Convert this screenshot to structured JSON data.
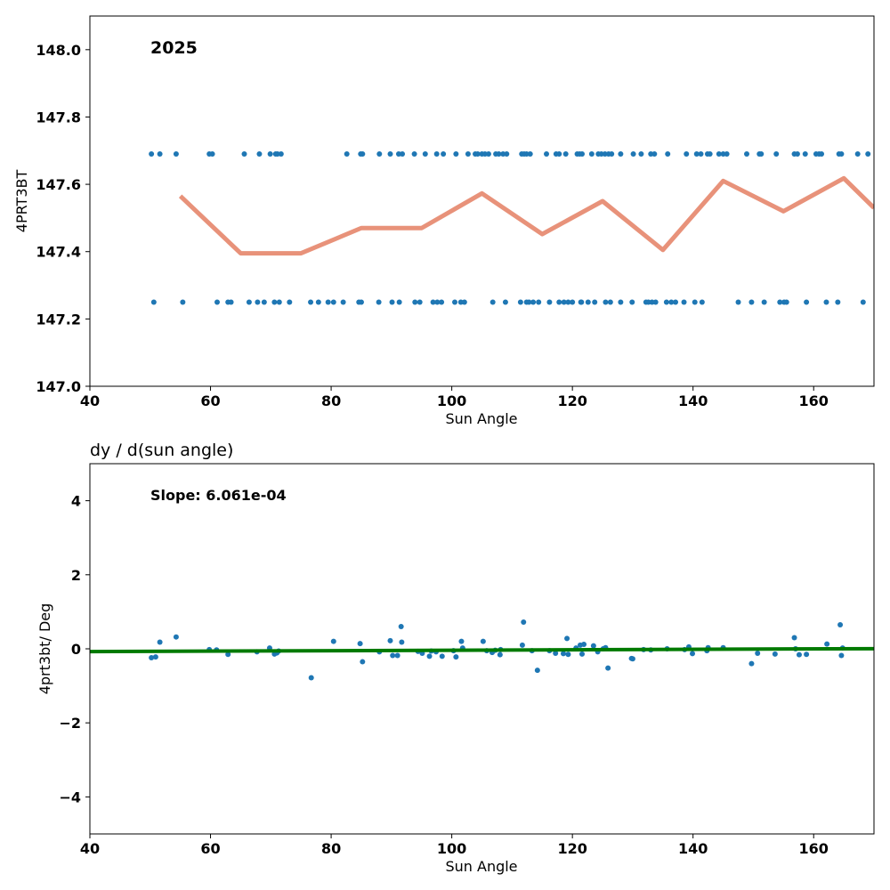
{
  "chart_data": [
    {
      "type": "scatter",
      "annotation": "2025",
      "xlabel": "Sun Angle",
      "ylabel": "4PRT3BT",
      "xlim": [
        40,
        170
      ],
      "ylim": [
        147.0,
        148.1
      ],
      "xticks": [
        40,
        60,
        80,
        100,
        120,
        140,
        160
      ],
      "yticks": [
        147.0,
        147.2,
        147.4,
        147.6,
        147.8,
        148.0
      ],
      "xtick_labels": [
        "40",
        "60",
        "80",
        "100",
        "120",
        "140",
        "160"
      ],
      "ytick_labels": [
        "147.0",
        "147.2",
        "147.4",
        "147.6",
        "147.8",
        "148.0"
      ],
      "point_color": "#1f77b4",
      "line_color": "#e8927a",
      "series": [
        {
          "values_high_y": 147.69,
          "x_high": [
            50.2,
            51.6,
            54.3,
            59.8,
            60.3,
            65.6,
            68.1,
            69.9,
            70.8,
            71.1,
            71.7,
            82.6,
            84.9,
            85.2,
            88.0,
            89.8,
            91.2,
            91.8,
            93.8,
            95.6,
            97.5,
            98.6,
            100.7,
            102.7,
            103.9,
            104.3,
            105.0,
            105.5,
            106.1,
            107.3,
            107.8,
            108.5,
            109.1,
            111.6,
            112.0,
            112.4,
            113.0,
            115.7,
            117.3,
            117.8,
            118.9,
            120.8,
            121.2,
            121.6,
            123.2,
            124.3,
            124.8,
            125.4,
            126.0,
            126.5,
            128.0,
            130.1,
            131.4,
            133.0,
            133.6,
            135.8,
            138.9,
            140.6,
            141.3,
            142.4,
            142.8,
            144.3,
            145.0,
            145.6,
            148.9,
            151.0,
            151.3,
            153.8,
            156.8,
            157.3,
            158.6,
            160.4,
            160.9,
            161.3,
            164.2,
            164.6,
            167.3,
            169.0
          ],
          "values_low_y": 147.25,
          "x_low": [
            50.6,
            55.4,
            61.1,
            62.9,
            63.4,
            66.4,
            67.8,
            68.9,
            70.6,
            71.4,
            73.1,
            76.6,
            77.9,
            79.5,
            80.4,
            82.0,
            84.6,
            85.0,
            87.9,
            90.1,
            91.3,
            93.9,
            94.7,
            96.9,
            97.6,
            98.3,
            100.5,
            101.5,
            102.1,
            106.8,
            108.9,
            111.4,
            112.4,
            112.8,
            113.5,
            114.4,
            116.2,
            117.8,
            118.6,
            119.3,
            120.0,
            121.4,
            121.5,
            122.6,
            123.7,
            125.5,
            126.3,
            128.0,
            129.9,
            132.2,
            132.6,
            133.2,
            133.8,
            135.6,
            136.4,
            137.1,
            138.5,
            140.3,
            141.5,
            147.5,
            149.7,
            151.8,
            154.4,
            155.1,
            155.5,
            158.8,
            162.1,
            164.0,
            168.2
          ]
        },
        {
          "name": "",
          "x": [
            55.0,
            65.0,
            75.0,
            85.0,
            95.0,
            105.0,
            115.0,
            125.0,
            135.0,
            145.0,
            155.0,
            165.0,
            170.0
          ],
          "y": [
            147.565,
            147.395,
            147.395,
            147.47,
            147.47,
            147.573,
            147.452,
            147.55,
            147.405,
            147.61,
            147.52,
            147.618,
            147.53
          ]
        }
      ]
    },
    {
      "type": "scatter",
      "title": "dy / d(sun angle)",
      "annotation": "Slope: 6.061e-04",
      "xlabel": "Sun Angle",
      "ylabel": "4prt3bt/ Deg",
      "xlim": [
        40,
        170
      ],
      "ylim": [
        -5,
        5
      ],
      "xticks": [
        40,
        60,
        80,
        100,
        120,
        140,
        160
      ],
      "yticks": [
        -4,
        -2,
        0,
        2,
        4
      ],
      "xtick_labels": [
        "40",
        "60",
        "80",
        "100",
        "120",
        "140",
        "160"
      ],
      "ytick_labels": [
        "−4",
        "−2",
        "0",
        "2",
        "4"
      ],
      "point_color": "#1f77b4",
      "fit_color": "#007a00",
      "fit": {
        "x": [
          40,
          170
        ],
        "y": [
          -0.075,
          0.004
        ]
      },
      "x": [
        50.2,
        50.9,
        51.6,
        54.3,
        59.8,
        61.0,
        62.9,
        67.7,
        69.8,
        70.6,
        71.0,
        71.3,
        76.7,
        80.4,
        84.8,
        85.2,
        88.0,
        89.8,
        90.2,
        91.0,
        91.6,
        91.7,
        94.4,
        95.1,
        96.3,
        96.6,
        97.4,
        98.4,
        100.3,
        100.7,
        101.6,
        101.8,
        105.2,
        105.8,
        106.7,
        107.2,
        108.0,
        108.1,
        111.7,
        111.9,
        113.3,
        114.2,
        116.2,
        117.2,
        118.5,
        119.1,
        119.3,
        120.6,
        121.3,
        121.6,
        121.9,
        123.5,
        124.2,
        125.1,
        125.5,
        125.9,
        129.8,
        130.0,
        131.8,
        133.0,
        135.7,
        138.6,
        139.3,
        139.9,
        142.3,
        142.5,
        145.0,
        149.7,
        150.7,
        153.6,
        156.8,
        157.0,
        157.6,
        158.8,
        162.2,
        164.4,
        164.6,
        164.8
      ],
      "y": [
        -0.24,
        -0.22,
        0.18,
        0.32,
        -0.02,
        -0.03,
        -0.15,
        -0.08,
        0.02,
        -0.14,
        -0.11,
        -0.06,
        -0.78,
        0.2,
        0.14,
        -0.35,
        -0.08,
        0.22,
        -0.18,
        -0.18,
        0.6,
        0.18,
        -0.07,
        -0.12,
        -0.2,
        -0.06,
        -0.08,
        -0.2,
        -0.05,
        -0.22,
        0.2,
        0.02,
        0.2,
        -0.05,
        -0.1,
        -0.04,
        -0.16,
        -0.02,
        0.1,
        0.72,
        -0.05,
        -0.58,
        -0.05,
        -0.12,
        -0.13,
        0.28,
        -0.15,
        0.02,
        0.1,
        -0.14,
        0.12,
        0.08,
        -0.08,
        0.0,
        0.03,
        -0.52,
        -0.26,
        -0.27,
        -0.02,
        -0.03,
        0.0,
        -0.02,
        0.05,
        -0.13,
        -0.05,
        0.03,
        0.03,
        -0.4,
        -0.12,
        -0.14,
        0.3,
        0.0,
        -0.16,
        -0.15,
        0.13,
        0.65,
        -0.18,
        0.02
      ]
    }
  ]
}
